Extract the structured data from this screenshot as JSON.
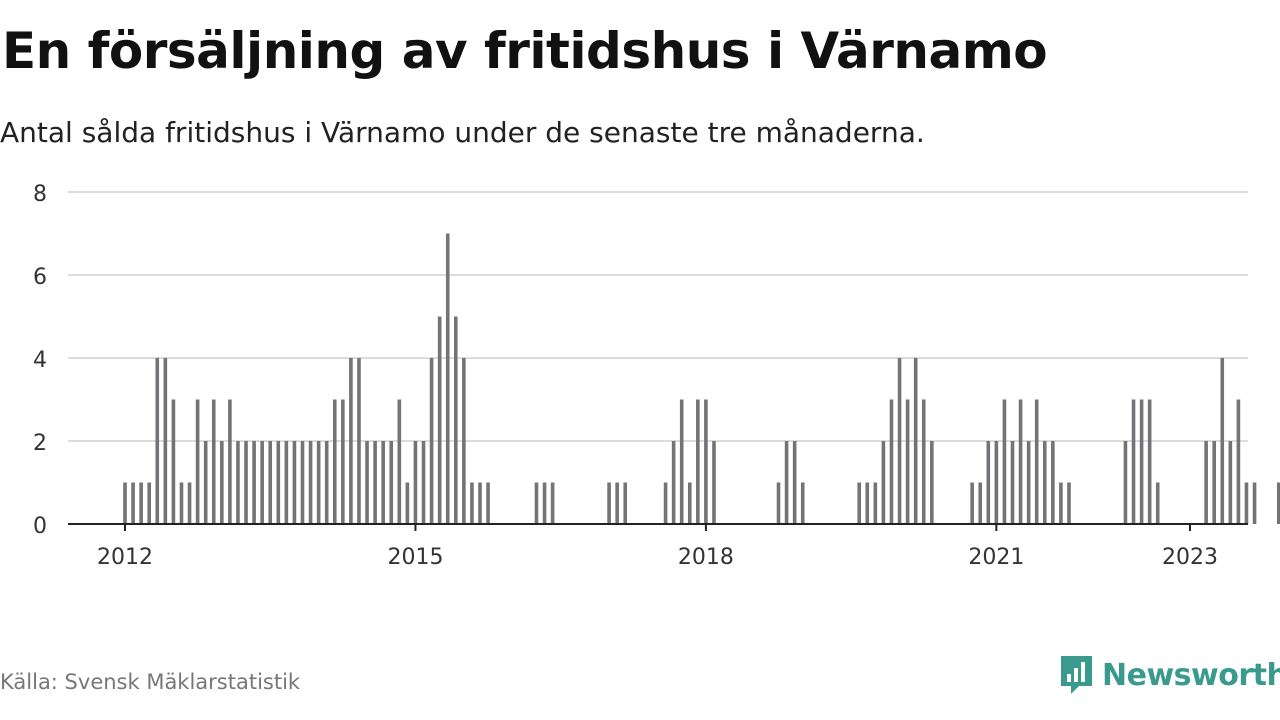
{
  "header": {
    "title": "En försäljning av fritidshus i Värnamo",
    "subtitle": "Antal sålda fritidshus i Värnamo under de senaste tre månaderna."
  },
  "footer": {
    "source": "Källa: Svensk Mäklarstatistik",
    "brand": "Newsworthy",
    "brand_color": "#3a9a8e"
  },
  "chart_data": {
    "type": "bar",
    "x_start": "2012-01",
    "x_end": "2023-01",
    "x_ticks": [
      "2012",
      "2015",
      "2018",
      "2021",
      "2023"
    ],
    "y_ticks": [
      "0",
      "2",
      "4",
      "6",
      "8"
    ],
    "ylim": [
      0,
      8
    ],
    "grid": true,
    "bar_color": "#737378",
    "highlight_color": "#1a9e94",
    "highlight_label": "1",
    "values": [
      1,
      1,
      1,
      1,
      4,
      4,
      3,
      1,
      1,
      3,
      2,
      3,
      2,
      3,
      2,
      2,
      2,
      2,
      2,
      2,
      2,
      2,
      2,
      2,
      2,
      2,
      3,
      3,
      4,
      4,
      2,
      2,
      2,
      2,
      3,
      1,
      2,
      2,
      4,
      5,
      7,
      5,
      4,
      1,
      1,
      1,
      0,
      0,
      0,
      0,
      0,
      1,
      1,
      1,
      0,
      0,
      0,
      0,
      0,
      0,
      1,
      1,
      1,
      0,
      0,
      0,
      0,
      1,
      2,
      3,
      1,
      3,
      3,
      2,
      0,
      0,
      0,
      0,
      0,
      0,
      0,
      1,
      2,
      2,
      1,
      0,
      0,
      0,
      0,
      0,
      0,
      1,
      1,
      1,
      2,
      3,
      4,
      3,
      4,
      3,
      2,
      0,
      0,
      0,
      0,
      1,
      1,
      2,
      2,
      3,
      2,
      3,
      2,
      3,
      2,
      2,
      1,
      1,
      0,
      0,
      0,
      0,
      0,
      0,
      2,
      3,
      3,
      3,
      1,
      0,
      0,
      0,
      0,
      0,
      2,
      2,
      4,
      2,
      3,
      1,
      1,
      0,
      0,
      1,
      1
    ]
  }
}
